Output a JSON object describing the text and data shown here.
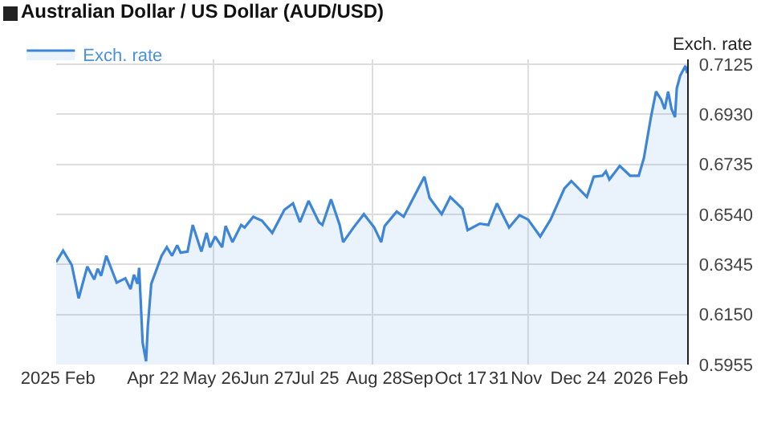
{
  "chart_data": {
    "type": "area",
    "title": "Australian Dollar / US Dollar (AUD/USD)",
    "ylabel": "Exch. rate",
    "x": [
      "2025-02-25",
      "2025-03-01",
      "2025-03-06",
      "2025-03-10",
      "2025-03-15",
      "2025-03-19",
      "2025-03-21",
      "2025-03-23",
      "2025-03-26",
      "2025-04-01",
      "2025-04-06",
      "2025-04-09",
      "2025-04-11",
      "2025-04-13",
      "2025-04-14",
      "2025-04-16",
      "2025-04-18",
      "2025-04-19",
      "2025-04-21",
      "2025-04-27",
      "2025-04-30",
      "2025-05-03",
      "2025-05-06",
      "2025-05-08",
      "2025-05-12",
      "2025-05-15",
      "2025-05-20",
      "2025-05-23",
      "2025-05-25",
      "2025-05-28",
      "2025-06-01",
      "2025-06-03",
      "2025-06-07",
      "2025-06-12",
      "2025-06-14",
      "2025-06-19",
      "2025-06-24",
      "2025-06-30",
      "2025-07-07",
      "2025-07-12",
      "2025-07-16",
      "2025-07-21",
      "2025-07-27",
      "2025-07-29",
      "2025-08-03",
      "2025-08-08",
      "2025-08-10",
      "2025-08-16",
      "2025-08-22",
      "2025-08-28",
      "2025-09-01",
      "2025-09-03",
      "2025-09-10",
      "2025-09-14",
      "2025-09-18",
      "2025-09-26",
      "2025-09-29",
      "2025-10-06",
      "2025-10-11",
      "2025-10-18",
      "2025-10-21",
      "2025-10-28",
      "2025-11-02",
      "2025-11-07",
      "2025-11-14",
      "2025-11-20",
      "2025-11-25",
      "2025-12-02",
      "2025-12-08",
      "2025-12-16",
      "2025-12-20",
      "2025-12-29",
      "2026-01-02",
      "2026-01-07",
      "2026-01-09",
      "2026-01-11",
      "2026-01-17",
      "2026-01-23",
      "2026-01-28",
      "2026-01-31",
      "2026-02-04",
      "2026-02-07",
      "2026-02-10",
      "2026-02-12",
      "2026-02-14",
      "2026-02-16",
      "2026-02-18",
      "2026-02-19",
      "2026-02-21",
      "2026-02-23",
      "2026-02-24",
      "2026-02-25"
    ],
    "series": [
      {
        "name": "Exch. rate",
        "color": "#3d85d8",
        "values": [
          0.6354,
          0.6399,
          0.6343,
          0.6213,
          0.6337,
          0.6287,
          0.6328,
          0.6301,
          0.6379,
          0.6274,
          0.6291,
          0.6249,
          0.6305,
          0.627,
          0.6332,
          0.6041,
          0.5968,
          0.6103,
          0.627,
          0.6379,
          0.6412,
          0.6379,
          0.642,
          0.6391,
          0.6395,
          0.6499,
          0.6395,
          0.6468,
          0.6412,
          0.6454,
          0.6412,
          0.6495,
          0.6432,
          0.6499,
          0.6489,
          0.6531,
          0.6516,
          0.6468,
          0.6558,
          0.6583,
          0.651,
          0.6593,
          0.651,
          0.6499,
          0.6599,
          0.6499,
          0.6432,
          0.6489,
          0.6541,
          0.6489,
          0.6432,
          0.6495,
          0.6551,
          0.6531,
          0.6583,
          0.6687,
          0.6604,
          0.6541,
          0.6608,
          0.6562,
          0.6479,
          0.6504,
          0.6499,
          0.6583,
          0.6489,
          0.6537,
          0.652,
          0.6454,
          0.652,
          0.6641,
          0.667,
          0.6608,
          0.6687,
          0.6691,
          0.6708,
          0.6676,
          0.6729,
          0.6691,
          0.6691,
          0.676,
          0.6917,
          0.7019,
          0.6987,
          0.695,
          0.7019,
          0.695,
          0.6919,
          0.7031,
          0.7081,
          0.7106,
          0.7119,
          0.709
        ]
      }
    ],
    "xlim": [
      "2025-02-25",
      "2026-02-25"
    ],
    "xticks": [
      {
        "value": "2025-02-26",
        "label": "2025 Feb"
      },
      {
        "value": "2025-04-22",
        "label": "Apr 22"
      },
      {
        "value": "2025-05-26",
        "label": "May 26"
      },
      {
        "value": "2025-05-27",
        "label": null
      },
      {
        "value": "2025-06-27",
        "label": "Jun 27"
      },
      {
        "value": "2025-07-25",
        "label": "Jul 25"
      },
      {
        "value": "2025-08-27",
        "label": null
      },
      {
        "value": "2025-08-28",
        "label": "Aug 28"
      },
      {
        "value": "2025-09-22",
        "label": "Sep"
      },
      {
        "value": "2025-10-17",
        "label": "Oct 17"
      },
      {
        "value": "2025-11-08",
        "label": "31"
      },
      {
        "value": "2025-11-24",
        "label": "Nov"
      },
      {
        "value": "2025-11-25",
        "label": null
      },
      {
        "value": "2025-12-24",
        "label": "Dec 24"
      },
      {
        "value": "2026-02-04",
        "label": "2026 Feb"
      }
    ],
    "ylim": [
      0.5955,
      0.7144
    ],
    "yticks": [
      {
        "value": 0.5955,
        "label": "0.5955"
      },
      {
        "value": 0.615,
        "label": "0.6150"
      },
      {
        "value": 0.6345,
        "label": "0.6345"
      },
      {
        "value": 0.654,
        "label": "0.6540"
      },
      {
        "value": 0.6735,
        "label": "0.6735"
      },
      {
        "value": 0.693,
        "label": "0.6930"
      },
      {
        "value": 0.7125,
        "label": "0.7125"
      }
    ],
    "grid": true,
    "legend": "top left"
  }
}
